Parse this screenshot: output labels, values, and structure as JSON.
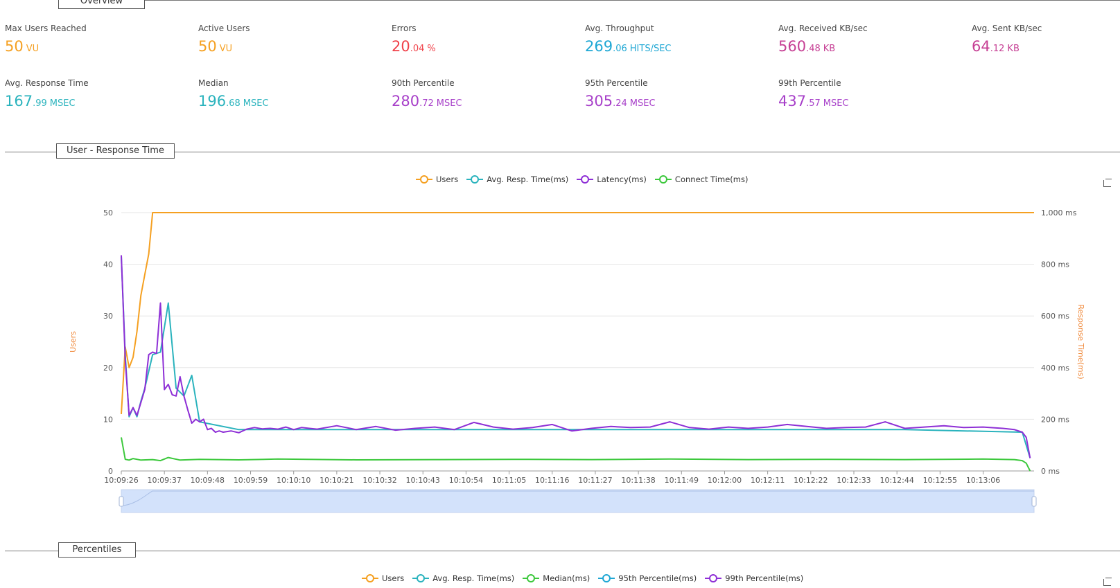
{
  "sections": {
    "overview": "Overview",
    "user_response_time": "User - Response Time",
    "percentiles": "Percentiles"
  },
  "metrics": [
    {
      "label": "Max Users Reached",
      "int": "50",
      "dec": "",
      "unit": "VU",
      "color": "#f5a021"
    },
    {
      "label": "Active Users",
      "int": "50",
      "dec": "",
      "unit": "VU",
      "color": "#f5a021"
    },
    {
      "label": "Errors",
      "int": "20",
      "dec": ".04",
      "unit": "%",
      "color": "#f0424a"
    },
    {
      "label": "Avg. Throughput",
      "int": "269",
      "dec": ".06",
      "unit": "HITS/SEC",
      "color": "#1ea7d4"
    },
    {
      "label": "Avg. Received KB/sec",
      "int": "560",
      "dec": ".48",
      "unit": "KB",
      "color": "#c63f94"
    },
    {
      "label": "Avg. Sent KB/sec",
      "int": "64",
      "dec": ".12",
      "unit": "KB",
      "color": "#c63f94"
    },
    {
      "label": "Avg. Response Time",
      "int": "167",
      "dec": ".99",
      "unit": "MSEC",
      "color": "#2ab3bd"
    },
    {
      "label": "Median",
      "int": "196",
      "dec": ".68",
      "unit": "MSEC",
      "color": "#2ab3bd"
    },
    {
      "label": "90th Percentile",
      "int": "280",
      "dec": ".72",
      "unit": "MSEC",
      "color": "#a73fc9"
    },
    {
      "label": "95th Percentile",
      "int": "305",
      "dec": ".24",
      "unit": "MSEC",
      "color": "#a73fc9"
    },
    {
      "label": "99th Percentile",
      "int": "437",
      "dec": ".57",
      "unit": "MSEC",
      "color": "#a73fc9"
    }
  ],
  "percentiles_legend": [
    {
      "name": "Users",
      "color": "#f5a021"
    },
    {
      "name": "Avg. Resp. Time(ms)",
      "color": "#2ab3bd"
    },
    {
      "name": "Median(ms)",
      "color": "#3cc83c"
    },
    {
      "name": "95th Percentile(ms)",
      "color": "#1ea7d4"
    },
    {
      "name": "99th Percentile(ms)",
      "color": "#8e2fd6"
    }
  ],
  "icons": {
    "chart_tool": "crop-icon"
  },
  "chart_data": {
    "type": "line",
    "title": "User - Response Time",
    "ylabel_left": "Users",
    "ylabel_right": "Response Time(ms)",
    "ylim_left": [
      0,
      50
    ],
    "yticks_left": [
      "0",
      "10",
      "20",
      "30",
      "40",
      "50"
    ],
    "ylim_right": [
      0,
      1000
    ],
    "yticks_right": [
      "0 ms",
      "200 ms",
      "400 ms",
      "600 ms",
      "800 ms",
      "1,000 ms"
    ],
    "x_range_seconds": [
      0,
      233
    ],
    "x_start_time": "10:09:26",
    "xtick_labels": [
      "10:09:26",
      "10:09:37",
      "10:09:48",
      "10:09:59",
      "10:10:10",
      "10:10:21",
      "10:10:32",
      "10:10:43",
      "10:10:54",
      "10:11:05",
      "10:11:16",
      "10:11:27",
      "10:11:38",
      "10:11:49",
      "10:12:00",
      "10:12:11",
      "10:12:22",
      "10:12:33",
      "10:12:44",
      "10:12:55",
      "10:13:06"
    ],
    "grid": true,
    "legend_position": "top-center",
    "series": [
      {
        "name": "Users",
        "axis": "left",
        "color": "#f5a021",
        "x": [
          0,
          1,
          2,
          3,
          4,
          5,
          6,
          7,
          8,
          233
        ],
        "y": [
          11,
          24,
          20,
          22,
          27,
          34,
          38,
          42,
          50,
          50
        ]
      },
      {
        "name": "Avg. Resp. Time(ms)",
        "axis": "right",
        "color": "#2ab3bd",
        "x": [
          0,
          1,
          2,
          3,
          4,
          5,
          6,
          8,
          10,
          12,
          14,
          16,
          18,
          20,
          30,
          50,
          80,
          120,
          160,
          200,
          230,
          232
        ],
        "y": [
          830,
          450,
          210,
          245,
          210,
          270,
          320,
          450,
          460,
          650,
          320,
          290,
          370,
          190,
          160,
          160,
          160,
          160,
          160,
          160,
          150,
          50
        ]
      },
      {
        "name": "Latency(ms)",
        "axis": "right",
        "color": "#8e2fd6",
        "x": [
          0,
          1,
          2,
          3,
          4,
          5,
          6,
          7,
          8,
          9,
          10,
          11,
          12,
          13,
          14,
          15,
          16,
          17,
          18,
          19,
          20,
          21,
          22,
          23,
          24,
          25,
          26,
          28,
          30,
          32,
          34,
          36,
          38,
          40,
          42,
          44,
          46,
          48,
          50,
          55,
          60,
          65,
          70,
          75,
          80,
          85,
          90,
          95,
          100,
          105,
          110,
          115,
          120,
          125,
          130,
          135,
          140,
          145,
          150,
          155,
          160,
          165,
          170,
          175,
          180,
          185,
          190,
          195,
          200,
          205,
          210,
          215,
          220,
          225,
          228,
          230,
          231,
          232
        ],
        "y": [
          835,
          430,
          215,
          245,
          215,
          265,
          315,
          450,
          460,
          455,
          650,
          315,
          335,
          295,
          290,
          365,
          290,
          235,
          185,
          200,
          190,
          200,
          160,
          165,
          150,
          155,
          150,
          155,
          148,
          162,
          168,
          163,
          165,
          162,
          170,
          160,
          168,
          165,
          162,
          175,
          160,
          172,
          158,
          165,
          170,
          160,
          188,
          170,
          162,
          168,
          180,
          155,
          165,
          172,
          168,
          170,
          190,
          168,
          162,
          170,
          165,
          170,
          180,
          172,
          165,
          168,
          170,
          190,
          165,
          170,
          175,
          168,
          170,
          165,
          160,
          150,
          130,
          50
        ]
      },
      {
        "name": "Connect Time(ms)",
        "axis": "right",
        "color": "#3cc83c",
        "x": [
          0,
          1,
          2,
          3,
          5,
          8,
          10,
          12,
          15,
          20,
          30,
          40,
          60,
          80,
          100,
          120,
          140,
          160,
          180,
          200,
          220,
          228,
          230,
          231,
          232
        ],
        "y": [
          130,
          45,
          42,
          48,
          42,
          44,
          40,
          52,
          42,
          45,
          43,
          46,
          43,
          44,
          45,
          44,
          46,
          44,
          45,
          44,
          46,
          44,
          40,
          30,
          0
        ]
      }
    ]
  }
}
